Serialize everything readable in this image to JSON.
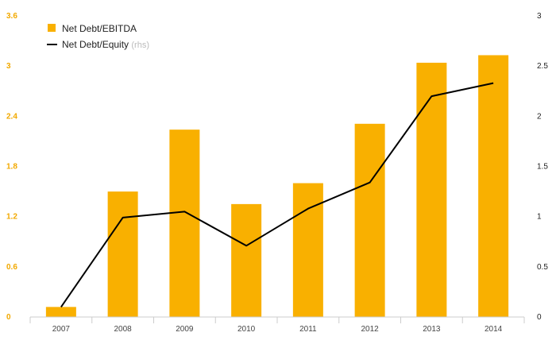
{
  "chart_data": {
    "type": "bar",
    "categories": [
      "2007",
      "2008",
      "2009",
      "2010",
      "2011",
      "2012",
      "2013",
      "2014"
    ],
    "series": [
      {
        "name": "Net Debt/EBITDA",
        "type": "bar",
        "axis": "left",
        "color": "#f9b000",
        "values": [
          0.12,
          1.5,
          2.24,
          1.35,
          1.6,
          2.31,
          3.04,
          3.13
        ]
      },
      {
        "name": "Net Debt/Equity",
        "axis_note": "(rhs)",
        "type": "line",
        "axis": "right",
        "color": "#000000",
        "values": [
          0.1,
          0.99,
          1.05,
          0.71,
          1.08,
          1.34,
          2.2,
          2.33
        ]
      }
    ],
    "y_left": {
      "ylim": [
        0,
        3.6
      ],
      "ticks": [
        "0",
        "0.6",
        "1.2",
        "1.8",
        "2.4",
        "3",
        "3.6"
      ],
      "tick_color": "#f2a900"
    },
    "y_right": {
      "ylim": [
        0,
        3
      ],
      "ticks": [
        "0",
        "0.5",
        "1",
        "1.5",
        "2",
        "2.5",
        "3"
      ]
    },
    "legend": "top-left",
    "grid": false
  }
}
